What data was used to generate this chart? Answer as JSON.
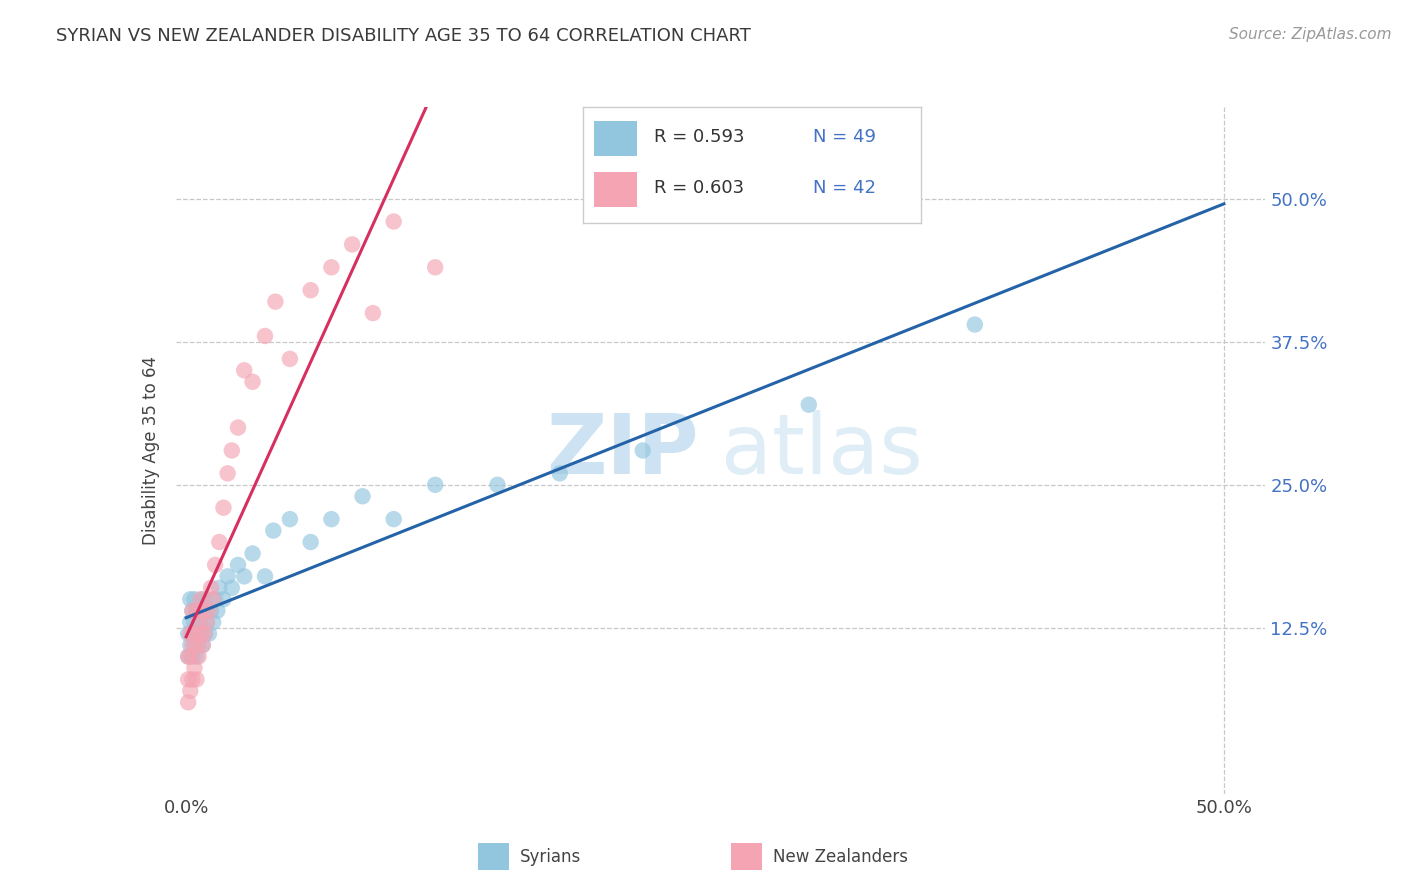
{
  "title": "SYRIAN VS NEW ZEALANDER DISABILITY AGE 35 TO 64 CORRELATION CHART",
  "source": "Source: ZipAtlas.com",
  "ylabel_label": "Disability Age 35 to 64",
  "legend_R_blue": "R = 0.593",
  "legend_N_blue": "N = 49",
  "legend_R_pink": "R = 0.603",
  "legend_N_pink": "N = 42",
  "label_syrians": "Syrians",
  "label_nz": "New Zealanders",
  "blue_color": "#92c5de",
  "pink_color": "#f4a4b3",
  "blue_line_color": "#2563a8",
  "pink_line_color": "#d63060",
  "watermark_zip": "ZIP",
  "watermark_atlas": "atlas",
  "grid_color": "#c8c8c8",
  "title_color": "#3a3a3a",
  "tick_color_blue": "#4472c4",
  "syrians_x": [
    0.001,
    0.001,
    0.002,
    0.002,
    0.002,
    0.003,
    0.003,
    0.003,
    0.004,
    0.004,
    0.004,
    0.005,
    0.005,
    0.005,
    0.006,
    0.006,
    0.007,
    0.007,
    0.008,
    0.008,
    0.009,
    0.009,
    0.01,
    0.01,
    0.011,
    0.012,
    0.013,
    0.014,
    0.015,
    0.016,
    0.018,
    0.02,
    0.022,
    0.025,
    0.028,
    0.032,
    0.038,
    0.042,
    0.05,
    0.06,
    0.07,
    0.085,
    0.1,
    0.12,
    0.15,
    0.18,
    0.22,
    0.3,
    0.38
  ],
  "syrians_y": [
    0.1,
    0.12,
    0.11,
    0.13,
    0.15,
    0.1,
    0.12,
    0.14,
    0.11,
    0.13,
    0.15,
    0.1,
    0.12,
    0.14,
    0.11,
    0.13,
    0.12,
    0.14,
    0.11,
    0.15,
    0.12,
    0.14,
    0.13,
    0.15,
    0.12,
    0.14,
    0.13,
    0.15,
    0.14,
    0.16,
    0.15,
    0.17,
    0.16,
    0.18,
    0.17,
    0.19,
    0.17,
    0.21,
    0.22,
    0.2,
    0.22,
    0.24,
    0.22,
    0.25,
    0.25,
    0.26,
    0.28,
    0.32,
    0.39
  ],
  "nz_x": [
    0.001,
    0.001,
    0.001,
    0.002,
    0.002,
    0.002,
    0.003,
    0.003,
    0.003,
    0.004,
    0.004,
    0.005,
    0.005,
    0.005,
    0.006,
    0.006,
    0.007,
    0.007,
    0.008,
    0.008,
    0.009,
    0.01,
    0.011,
    0.012,
    0.013,
    0.014,
    0.016,
    0.018,
    0.02,
    0.022,
    0.025,
    0.028,
    0.032,
    0.038,
    0.043,
    0.05,
    0.06,
    0.07,
    0.08,
    0.09,
    0.1,
    0.12
  ],
  "nz_y": [
    0.06,
    0.08,
    0.1,
    0.07,
    0.1,
    0.12,
    0.08,
    0.11,
    0.14,
    0.09,
    0.12,
    0.08,
    0.11,
    0.14,
    0.1,
    0.13,
    0.12,
    0.15,
    0.11,
    0.14,
    0.12,
    0.13,
    0.14,
    0.16,
    0.15,
    0.18,
    0.2,
    0.23,
    0.26,
    0.28,
    0.3,
    0.35,
    0.34,
    0.38,
    0.41,
    0.36,
    0.42,
    0.44,
    0.46,
    0.4,
    0.48,
    0.44
  ],
  "xlim": [
    0.0,
    0.5
  ],
  "ylim": [
    0.0,
    0.56
  ],
  "yticks": [
    0.125,
    0.25,
    0.375,
    0.5
  ],
  "ytick_labels": [
    "12.5%",
    "25.0%",
    "37.5%",
    "50.0%"
  ],
  "xticks": [
    0.0,
    0.5
  ],
  "xtick_labels": [
    "0.0%",
    "50.0%"
  ]
}
